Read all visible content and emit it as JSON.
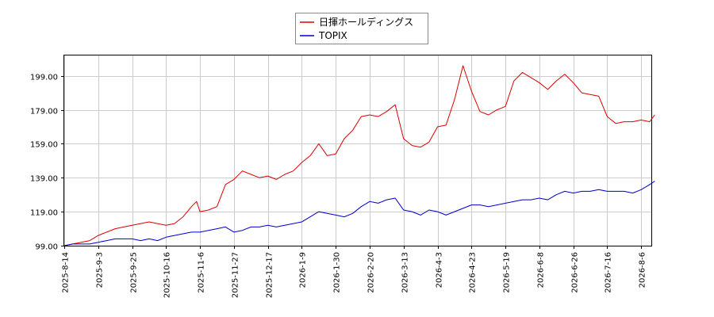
{
  "chart_data": {
    "type": "line",
    "title": "",
    "xlabel": "",
    "ylabel": "",
    "ylim": [
      99.0,
      211.0
    ],
    "yticks": [
      99.0,
      119.0,
      139.0,
      159.0,
      179.0,
      199.0
    ],
    "ytick_labels": [
      "99.00",
      "119.00",
      "139.00",
      "159.00",
      "179.00",
      "199.00"
    ],
    "xticks": [
      "2025-8-14",
      "2025-9-3",
      "2025-9-25",
      "2025-10-16",
      "2025-11-6",
      "2025-11-27",
      "2025-12-17",
      "2026-1-9",
      "2026-1-30",
      "2026-2-20",
      "2026-3-13",
      "2026-4-3",
      "2026-4-23",
      "2026-5-19",
      "2026-6-8",
      "2026-6-26",
      "2026-7-16",
      "2026-8-6"
    ],
    "grid": true,
    "legend_position": "top-center",
    "series": [
      {
        "name": "日揮ホールディングス",
        "color": "#dd0000",
        "points": [
          [
            0,
            99.0
          ],
          [
            0.25,
            100.0
          ],
          [
            0.5,
            101.0
          ],
          [
            0.75,
            102.0
          ],
          [
            1,
            105.0
          ],
          [
            1.25,
            107.0
          ],
          [
            1.5,
            109.0
          ],
          [
            1.75,
            110.0
          ],
          [
            2,
            111.0
          ],
          [
            2.25,
            112.0
          ],
          [
            2.5,
            113.0
          ],
          [
            2.75,
            112.0
          ],
          [
            3,
            111.0
          ],
          [
            3.25,
            112.0
          ],
          [
            3.5,
            116.0
          ],
          [
            3.75,
            122.0
          ],
          [
            3.9,
            125.0
          ],
          [
            4,
            119.0
          ],
          [
            4.25,
            120.0
          ],
          [
            4.5,
            122.0
          ],
          [
            4.75,
            135.0
          ],
          [
            5,
            138.0
          ],
          [
            5.25,
            143.0
          ],
          [
            5.5,
            141.0
          ],
          [
            5.75,
            139.0
          ],
          [
            6,
            140.0
          ],
          [
            6.25,
            138.0
          ],
          [
            6.5,
            141.0
          ],
          [
            6.75,
            143.0
          ],
          [
            7,
            148.0
          ],
          [
            7.25,
            152.0
          ],
          [
            7.5,
            159.0
          ],
          [
            7.75,
            152.0
          ],
          [
            8,
            153.0
          ],
          [
            8.25,
            162.0
          ],
          [
            8.5,
            167.0
          ],
          [
            8.75,
            175.0
          ],
          [
            9,
            176.0
          ],
          [
            9.25,
            175.0
          ],
          [
            9.5,
            178.0
          ],
          [
            9.75,
            182.0
          ],
          [
            10,
            162.0
          ],
          [
            10.25,
            158.0
          ],
          [
            10.5,
            157.0
          ],
          [
            10.75,
            160.0
          ],
          [
            11,
            169.0
          ],
          [
            11.25,
            170.0
          ],
          [
            11.5,
            185.0
          ],
          [
            11.75,
            205.0
          ],
          [
            12,
            190.0
          ],
          [
            12.25,
            178.0
          ],
          [
            12.5,
            176.0
          ],
          [
            12.75,
            179.0
          ],
          [
            13,
            181.0
          ],
          [
            13.25,
            196.0
          ],
          [
            13.5,
            201.0
          ],
          [
            13.75,
            198.0
          ],
          [
            14,
            195.0
          ],
          [
            14.25,
            191.0
          ],
          [
            14.5,
            196.0
          ],
          [
            14.75,
            200.0
          ],
          [
            15,
            195.0
          ],
          [
            15.25,
            189.0
          ],
          [
            15.5,
            188.0
          ],
          [
            15.75,
            187.0
          ],
          [
            16,
            175.0
          ],
          [
            16.25,
            171.0
          ],
          [
            16.5,
            172.0
          ],
          [
            16.75,
            172.0
          ],
          [
            17,
            173.0
          ],
          [
            17.25,
            172.0
          ],
          [
            17.4,
            176.0
          ]
        ]
      },
      {
        "name": "TOPIX",
        "color": "#0000cc",
        "points": [
          [
            0,
            99.0
          ],
          [
            0.25,
            100.0
          ],
          [
            0.5,
            100.0
          ],
          [
            0.75,
            100.0
          ],
          [
            1,
            101.0
          ],
          [
            1.25,
            102.0
          ],
          [
            1.5,
            103.0
          ],
          [
            1.75,
            103.0
          ],
          [
            2,
            103.0
          ],
          [
            2.25,
            102.0
          ],
          [
            2.5,
            103.0
          ],
          [
            2.75,
            102.0
          ],
          [
            3,
            104.0
          ],
          [
            3.25,
            105.0
          ],
          [
            3.5,
            106.0
          ],
          [
            3.75,
            107.0
          ],
          [
            4,
            107.0
          ],
          [
            4.25,
            108.0
          ],
          [
            4.5,
            109.0
          ],
          [
            4.75,
            110.0
          ],
          [
            5,
            107.0
          ],
          [
            5.25,
            108.0
          ],
          [
            5.5,
            110.0
          ],
          [
            5.75,
            110.0
          ],
          [
            6,
            111.0
          ],
          [
            6.25,
            110.0
          ],
          [
            6.5,
            111.0
          ],
          [
            6.75,
            112.0
          ],
          [
            7,
            113.0
          ],
          [
            7.25,
            116.0
          ],
          [
            7.5,
            119.0
          ],
          [
            7.75,
            118.0
          ],
          [
            8,
            117.0
          ],
          [
            8.25,
            116.0
          ],
          [
            8.5,
            118.0
          ],
          [
            8.75,
            122.0
          ],
          [
            9,
            125.0
          ],
          [
            9.25,
            124.0
          ],
          [
            9.5,
            126.0
          ],
          [
            9.75,
            127.0
          ],
          [
            10,
            120.0
          ],
          [
            10.25,
            119.0
          ],
          [
            10.5,
            117.0
          ],
          [
            10.75,
            120.0
          ],
          [
            11,
            119.0
          ],
          [
            11.25,
            117.0
          ],
          [
            11.5,
            119.0
          ],
          [
            11.75,
            121.0
          ],
          [
            12,
            123.0
          ],
          [
            12.25,
            123.0
          ],
          [
            12.5,
            122.0
          ],
          [
            12.75,
            123.0
          ],
          [
            13,
            124.0
          ],
          [
            13.25,
            125.0
          ],
          [
            13.5,
            126.0
          ],
          [
            13.75,
            126.0
          ],
          [
            14,
            127.0
          ],
          [
            14.25,
            126.0
          ],
          [
            14.5,
            129.0
          ],
          [
            14.75,
            131.0
          ],
          [
            15,
            130.0
          ],
          [
            15.25,
            131.0
          ],
          [
            15.5,
            131.0
          ],
          [
            15.75,
            132.0
          ],
          [
            16,
            131.0
          ],
          [
            16.25,
            131.0
          ],
          [
            16.5,
            131.0
          ],
          [
            16.75,
            130.0
          ],
          [
            17,
            132.0
          ],
          [
            17.25,
            135.0
          ],
          [
            17.4,
            137.0
          ]
        ]
      }
    ]
  }
}
